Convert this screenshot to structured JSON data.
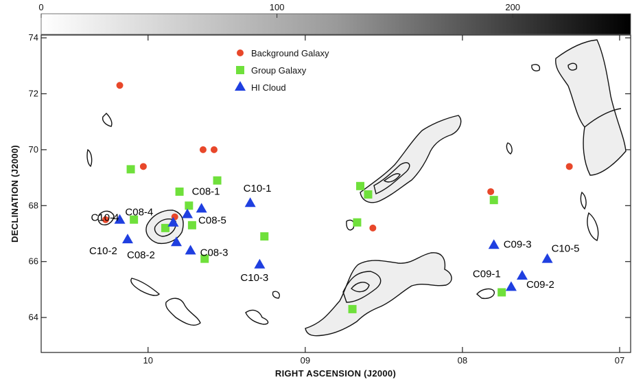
{
  "chart_data": {
    "type": "scatter",
    "colorbar": {
      "ticks": [
        "0",
        "100",
        "200"
      ],
      "tick_values": [
        0,
        100,
        200
      ],
      "range": [
        0,
        250
      ]
    },
    "xlabel": "RIGHT ASCENSION (J2000)",
    "ylabel": "DECLINATION (J2000)",
    "x_ticks": [
      "10",
      "09",
      "08",
      "07"
    ],
    "y_ticks": [
      "64",
      "66",
      "68",
      "70",
      "72",
      "74"
    ],
    "y_tick_values": [
      64,
      66,
      68,
      70,
      72,
      74
    ],
    "x_tick_values_hours": [
      10,
      9,
      8,
      7
    ],
    "xlim_hours": [
      10.68,
      6.93
    ],
    "ylim": [
      62.75,
      74.1
    ],
    "legend": {
      "placement": "top-center",
      "entries": [
        {
          "label": "Background Galaxy",
          "color": "#e8472a",
          "marker": "circle"
        },
        {
          "label": "Group Galaxy",
          "color": "#6fe03b",
          "marker": "square"
        },
        {
          "label": "HI Cloud",
          "color": "#1f3fe0",
          "marker": "triangle"
        }
      ]
    },
    "series": [
      {
        "name": "Background Galaxy",
        "color": "#e8472a",
        "marker": "circle",
        "points": [
          {
            "x": 10.18,
            "y": 72.3
          },
          {
            "x": 10.03,
            "y": 69.4
          },
          {
            "x": 9.65,
            "y": 70.0
          },
          {
            "x": 9.58,
            "y": 70.0
          },
          {
            "x": 8.57,
            "y": 67.2
          },
          {
            "x": 7.82,
            "y": 68.5
          },
          {
            "x": 7.32,
            "y": 69.4
          },
          {
            "x": 10.27,
            "y": 67.5
          },
          {
            "x": 9.83,
            "y": 67.6
          }
        ]
      },
      {
        "name": "Group Galaxy",
        "color": "#6fe03b",
        "marker": "square",
        "points": [
          {
            "x": 10.11,
            "y": 69.3
          },
          {
            "x": 9.56,
            "y": 68.9
          },
          {
            "x": 9.8,
            "y": 68.5
          },
          {
            "x": 10.09,
            "y": 67.5
          },
          {
            "x": 9.89,
            "y": 67.2
          },
          {
            "x": 9.74,
            "y": 68.0
          },
          {
            "x": 9.72,
            "y": 67.3
          },
          {
            "x": 9.64,
            "y": 66.1
          },
          {
            "x": 9.26,
            "y": 66.9
          },
          {
            "x": 8.65,
            "y": 68.7
          },
          {
            "x": 8.6,
            "y": 68.4
          },
          {
            "x": 8.67,
            "y": 67.4
          },
          {
            "x": 8.7,
            "y": 64.3
          },
          {
            "x": 7.8,
            "y": 68.2
          },
          {
            "x": 7.75,
            "y": 64.9
          }
        ]
      },
      {
        "name": "HI Cloud",
        "color": "#1f3fe0",
        "marker": "triangle",
        "points": [
          {
            "x": 10.18,
            "y": 67.5,
            "label": "C10-4"
          },
          {
            "x": 10.13,
            "y": 66.8,
            "label": "C10-2"
          },
          {
            "x": 9.84,
            "y": 67.4,
            "label": "C08-4"
          },
          {
            "x": 9.75,
            "y": 67.7,
            "label": "C08-5"
          },
          {
            "x": 9.66,
            "y": 67.9,
            "label": "C08-1"
          },
          {
            "x": 9.82,
            "y": 66.7,
            "label": "C08-2"
          },
          {
            "x": 9.73,
            "y": 66.4,
            "label": "C08-3"
          },
          {
            "x": 9.35,
            "y": 68.1,
            "label": "C10-1"
          },
          {
            "x": 9.29,
            "y": 65.9,
            "label": "C10-3"
          },
          {
            "x": 7.8,
            "y": 66.6,
            "label": "C09-3"
          },
          {
            "x": 7.69,
            "y": 65.1,
            "label": "C09-1"
          },
          {
            "x": 7.62,
            "y": 65.5,
            "label": "C09-2"
          },
          {
            "x": 7.46,
            "y": 66.1,
            "label": "C10-5"
          }
        ]
      }
    ]
  },
  "colors": {
    "background_galaxy": "#e8472a",
    "group_galaxy": "#6fe03b",
    "hi_cloud": "#1f3fe0",
    "contour": "#111111"
  }
}
